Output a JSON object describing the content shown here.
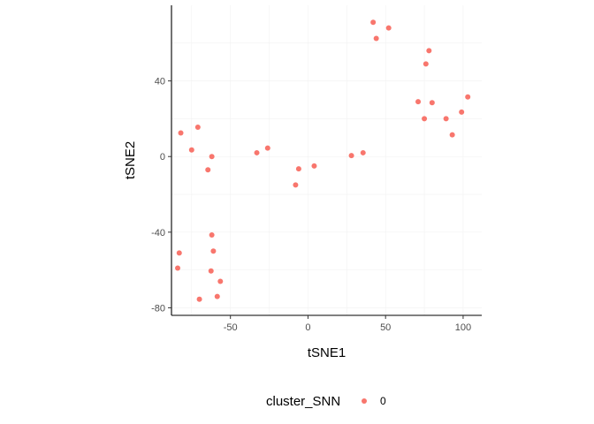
{
  "chart_data": {
    "type": "scatter",
    "xlabel": "tSNE1",
    "ylabel": "tSNE2",
    "xlim": [
      -88,
      112
    ],
    "ylim": [
      -84,
      80
    ],
    "x_ticks": [
      -50,
      0,
      50,
      100
    ],
    "y_ticks": [
      -80,
      -40,
      0,
      40
    ],
    "x_tick_labels": [
      "-50",
      "0",
      "50",
      "100"
    ],
    "y_tick_labels": [
      "-80",
      "-40",
      "0",
      "40"
    ],
    "grid": true,
    "legend": {
      "title": "cluster_SNN",
      "position": "bottom",
      "entries": [
        {
          "label": "0",
          "color": "#F8766D"
        }
      ]
    },
    "point_color": "#F8766D",
    "series": [
      {
        "name": "0",
        "points": [
          [
            -82,
            12.5
          ],
          [
            -75,
            3.5
          ],
          [
            -71,
            15.5
          ],
          [
            -62,
            0
          ],
          [
            -64.5,
            -7
          ],
          [
            -33,
            2
          ],
          [
            -26,
            4.5
          ],
          [
            -6,
            -6.5
          ],
          [
            -8,
            -15
          ],
          [
            4,
            -5
          ],
          [
            28,
            0.5
          ],
          [
            35.5,
            2
          ],
          [
            42,
            71
          ],
          [
            44,
            62.5
          ],
          [
            52,
            68
          ],
          [
            78,
            56
          ],
          [
            76,
            49
          ],
          [
            71,
            29
          ],
          [
            80,
            28.5
          ],
          [
            75,
            20
          ],
          [
            89,
            20
          ],
          [
            93,
            11.5
          ],
          [
            99,
            23.5
          ],
          [
            103,
            31.5
          ],
          [
            -83,
            -51
          ],
          [
            -84,
            -59
          ],
          [
            -62,
            -41.5
          ],
          [
            -61,
            -50
          ],
          [
            -62.5,
            -60.5
          ],
          [
            -56.5,
            -66
          ],
          [
            -58.5,
            -74
          ],
          [
            -70,
            -75.5
          ]
        ]
      }
    ]
  }
}
